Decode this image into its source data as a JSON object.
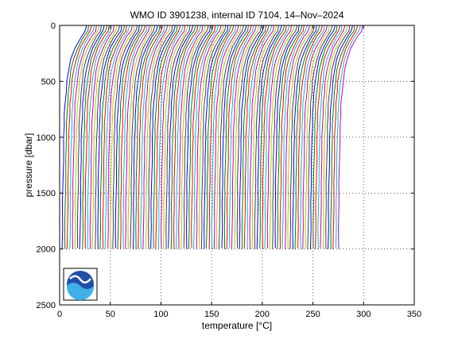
{
  "chart_data": {
    "type": "line",
    "title": "WMO ID 3901238, internal ID 7104, 14–Nov–2024",
    "xlabel": "temperature [°C]",
    "ylabel": "pressure [dbar]",
    "xlim": [
      0,
      350
    ],
    "ylim": [
      2500,
      0
    ],
    "y_reversed": true,
    "grid": true,
    "grid_style": "dotted",
    "x_ticks": [
      "0",
      "50",
      "100",
      "150",
      "200",
      "250",
      "300",
      "350"
    ],
    "y_ticks": [
      "0",
      "500",
      "1000",
      "1500",
      "2000",
      "2500"
    ],
    "series_colors": [
      "#0000ff",
      "#008000",
      "#ff0000",
      "#00bfbf",
      "#bf00bf",
      "#bfbf00",
      "#404040"
    ],
    "profile_count": 110,
    "first_profile_offset": 0,
    "profile_spacing": 2.5,
    "profile_shape": {
      "pressure": [
        0,
        10,
        50,
        100,
        200,
        300,
        400,
        500,
        600,
        700,
        800,
        900,
        1000,
        1200,
        1400,
        1600,
        1800,
        2000
      ],
      "temperature": [
        26,
        26,
        25,
        21,
        15,
        11,
        8.5,
        7,
        6,
        5,
        4.5,
        4.1,
        3.8,
        3.4,
        3.0,
        2.7,
        2.5,
        2.3
      ]
    },
    "annotation": "profiles offset successively along the temperature axis",
    "logo": "noaa-logo"
  }
}
